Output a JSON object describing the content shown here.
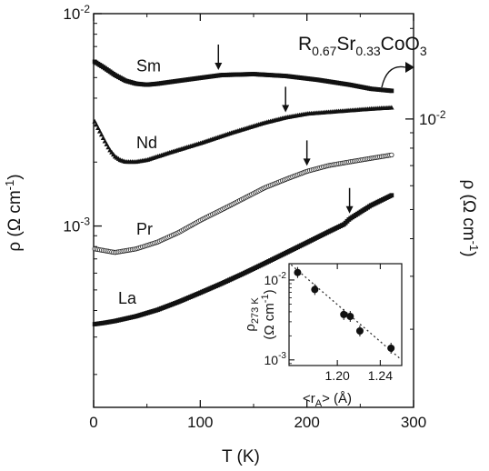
{
  "chart_data": [
    {
      "type": "line",
      "title": {
        "base": "R",
        "sub1": "0.67",
        "mid": "Sr",
        "sub2": "0.33",
        "tail": "CoO",
        "sub3": "3"
      },
      "xlabel": "T (K)",
      "ylabel_left": "ρ (Ω cm",
      "ylabel_left_sup": "-1",
      "ylabel_left_close": ")",
      "ylabel_right": "ρ (Ω cm",
      "ylabel_right_sup": "-1",
      "ylabel_right_close": ")",
      "xlim": [
        0,
        300
      ],
      "x_ticks": [
        0,
        100,
        200,
        300
      ],
      "left_yscale": "log",
      "left_ylim": [
        0.00014,
        0.01
      ],
      "left_ticks": [
        {
          "base": "10",
          "exp": "-2",
          "value": 0.01
        },
        {
          "base": "10",
          "exp": "-3",
          "value": 0.001
        }
      ],
      "right_yscale": "log",
      "right_ylim": [
        0.0011,
        0.0224
      ],
      "right_ticks": [
        {
          "base": "10",
          "exp": "-2",
          "value": 0.01
        }
      ],
      "series": [
        {
          "name": "Sm",
          "axis": "right",
          "x": [
            1,
            10,
            20,
            30,
            40,
            50,
            60,
            80,
            100,
            120,
            150,
            180,
            210,
            240,
            260,
            280
          ],
          "y": [
            0.0155,
            0.0148,
            0.014,
            0.0134,
            0.0131,
            0.013,
            0.0131,
            0.0134,
            0.0137,
            0.014,
            0.0141,
            0.0139,
            0.0135,
            0.013,
            0.0126,
            0.0124
          ],
          "arrow_T": 117
        },
        {
          "name": "Nd",
          "axis": "right",
          "x": [
            1,
            5,
            10,
            15,
            20,
            25,
            30,
            40,
            50,
            70,
            100,
            130,
            160,
            180,
            200,
            230,
            260,
            280
          ],
          "y": [
            0.0098,
            0.0092,
            0.0085,
            0.0079,
            0.0075,
            0.0073,
            0.0072,
            0.0072,
            0.0073,
            0.0077,
            0.0083,
            0.009,
            0.0097,
            0.0101,
            0.0104,
            0.0106,
            0.0108,
            0.0109
          ],
          "arrow_T": 180
        },
        {
          "name": "Pr",
          "axis": "right",
          "x": [
            1,
            20,
            40,
            60,
            80,
            100,
            130,
            160,
            180,
            200,
            220,
            240,
            260,
            280
          ],
          "y": [
            0.0037,
            0.0036,
            0.0037,
            0.0039,
            0.0042,
            0.0046,
            0.0052,
            0.0059,
            0.0063,
            0.0067,
            0.007,
            0.0072,
            0.0074,
            0.0076
          ],
          "arrow_T": 200
        },
        {
          "name": "La",
          "axis": "left",
          "x": [
            1,
            10,
            20,
            40,
            60,
            80,
            100,
            120,
            140,
            160,
            180,
            200,
            220,
            235,
            240,
            260,
            280
          ],
          "y": [
            0.000345,
            0.00035,
            0.000357,
            0.000376,
            0.000403,
            0.00044,
            0.000485,
            0.000536,
            0.000596,
            0.000666,
            0.000746,
            0.000836,
            0.000938,
            0.00102,
            0.00108,
            0.00125,
            0.0014
          ],
          "arrow_T": 240
        }
      ]
    },
    {
      "type": "scatter",
      "xlabel": {
        "pre": "<r",
        "sub": "A",
        "post": "> (Å)"
      },
      "ylabel": {
        "base": "ρ",
        "sub": "273 K"
      },
      "ylabel2": {
        "base": "(Ω cm",
        "sup": "-1",
        "close": ")"
      },
      "xlim": [
        1.155,
        1.26
      ],
      "x_ticks": [
        1.2,
        1.24
      ],
      "x_tick_labels": [
        "1.20",
        "1.24"
      ],
      "yscale": "log",
      "ylim": [
        0.00085,
        0.016
      ],
      "y_ticks": [
        {
          "base": "10",
          "exp": "-2",
          "value": 0.01
        },
        {
          "base": "10",
          "exp": "-3",
          "value": 0.001
        }
      ],
      "points": [
        {
          "x": 1.163,
          "y": 0.0124
        },
        {
          "x": 1.179,
          "y": 0.0076
        },
        {
          "x": 1.206,
          "y": 0.0037
        },
        {
          "x": 1.212,
          "y": 0.0035
        },
        {
          "x": 1.221,
          "y": 0.0023
        },
        {
          "x": 1.25,
          "y": 0.0014
        }
      ],
      "fit": {
        "x": [
          1.157,
          1.258
        ],
        "y": [
          0.0155,
          0.00105
        ],
        "style": "dotted"
      }
    }
  ]
}
